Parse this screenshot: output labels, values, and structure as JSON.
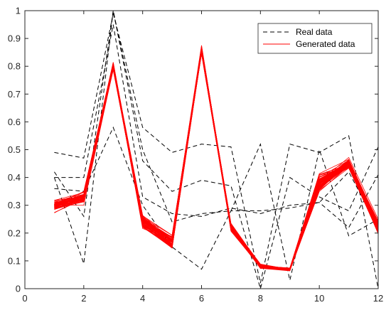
{
  "chart_data": {
    "type": "line",
    "title": "",
    "xlabel": "",
    "ylabel": "",
    "xlim": [
      0,
      12
    ],
    "ylim": [
      0,
      1
    ],
    "xticks": [
      0,
      2,
      4,
      6,
      8,
      10,
      12
    ],
    "yticks": [
      0,
      0.1,
      0.2,
      0.3,
      0.4,
      0.5,
      0.6,
      0.7,
      0.8,
      0.9,
      1
    ],
    "x": [
      1,
      2,
      3,
      4,
      5,
      6,
      7,
      8,
      9,
      10,
      11,
      12
    ],
    "grid": false,
    "legend": {
      "position": "top-right",
      "entries": [
        {
          "label": "Real data",
          "color": "#000000",
          "style": "dashed"
        },
        {
          "label": "Generated data",
          "color": "#ff0000",
          "style": "solid"
        }
      ]
    },
    "series": [
      {
        "group": "real",
        "color": "#000000",
        "style": "dashed",
        "values": [
          0.4,
          0.09,
          1.0,
          0.5,
          0.24,
          0.27,
          0.28,
          0.52,
          0.03,
          0.5,
          0.19,
          0.25
        ]
      },
      {
        "group": "real",
        "color": "#000000",
        "style": "dashed",
        "values": [
          0.49,
          0.47,
          0.99,
          0.58,
          0.49,
          0.52,
          0.51,
          0.02,
          0.52,
          0.49,
          0.55,
          0.0
        ]
      },
      {
        "group": "real",
        "color": "#000000",
        "style": "dashed",
        "values": [
          0.42,
          0.26,
          1.0,
          0.46,
          0.35,
          0.39,
          0.37,
          0.0,
          0.4,
          0.33,
          0.28,
          0.51
        ]
      },
      {
        "group": "real",
        "color": "#000000",
        "style": "dashed",
        "values": [
          0.4,
          0.4,
          0.95,
          0.33,
          0.27,
          0.26,
          0.29,
          0.27,
          0.3,
          0.31,
          0.22,
          0.41
        ]
      },
      {
        "group": "real",
        "color": "#000000",
        "style": "dashed",
        "values": [
          0.36,
          0.35,
          0.58,
          0.3,
          0.15,
          0.07,
          0.28,
          0.28,
          0.29,
          0.31,
          0.42,
          0.22
        ]
      }
    ],
    "generated": {
      "group": "generated",
      "color": "#ff0000",
      "style": "solid",
      "count": 60,
      "values": [
        0.3,
        0.33,
        0.8,
        0.24,
        0.17,
        0.86,
        0.22,
        0.08,
        0.07,
        0.38,
        0.45,
        0.22
      ],
      "spread": [
        0.03,
        0.035,
        0.02,
        0.035,
        0.035,
        0.02,
        0.025,
        0.012,
        0.008,
        0.045,
        0.03,
        0.035
      ]
    }
  }
}
